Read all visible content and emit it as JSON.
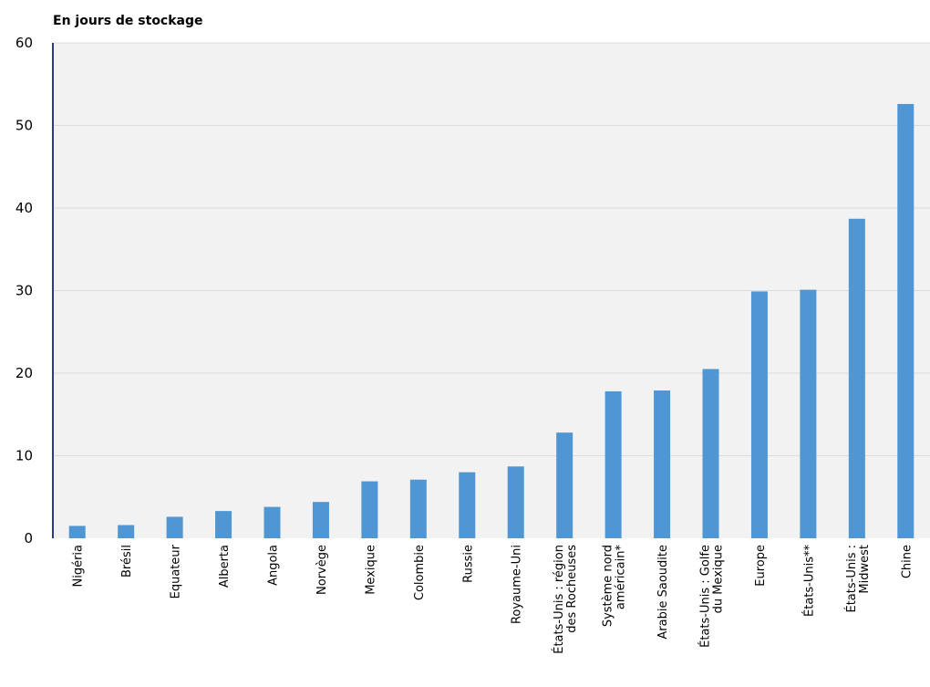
{
  "chart_data": {
    "type": "bar",
    "ylabel": "En jours de stockage",
    "ylim": [
      0,
      60
    ],
    "yticks": [
      0,
      10,
      20,
      30,
      40,
      50,
      60
    ],
    "grid": true,
    "bar_color": "#4f96d3",
    "plot_background": "#f2f2f2",
    "axis_color": "#2b3990",
    "categories": [
      [
        "Nigéria"
      ],
      [
        "Brésil"
      ],
      [
        "Equateur"
      ],
      [
        "Alberta"
      ],
      [
        "Angola"
      ],
      [
        "Norvège"
      ],
      [
        "Mexique"
      ],
      [
        "Colombie"
      ],
      [
        "Russie"
      ],
      [
        "Royaume-Uni"
      ],
      [
        "États-Unis : région",
        "des Rocheuses"
      ],
      [
        "Système nord",
        "américain*"
      ],
      [
        "Arabie Saoudite"
      ],
      [
        "États-Unis : Golfe",
        "du Mexique"
      ],
      [
        "Europe"
      ],
      [
        "États-Unis**"
      ],
      [
        "États-Unis :",
        "Midwest"
      ],
      [
        "Chine"
      ]
    ],
    "values": [
      1.5,
      1.6,
      2.6,
      3.3,
      3.8,
      4.4,
      6.9,
      7.1,
      8.0,
      8.7,
      12.8,
      17.8,
      17.9,
      20.5,
      29.9,
      30.1,
      38.7,
      52.6
    ]
  }
}
